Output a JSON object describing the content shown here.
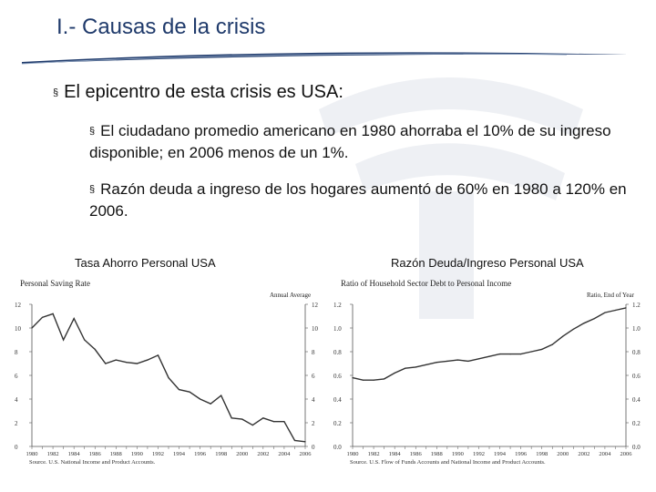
{
  "slide": {
    "title": "I.- Causas de la crisis",
    "bullet_marker": "§",
    "bullets": [
      {
        "text": "El epicentro de esta crisis es USA:"
      },
      {
        "text": "El ciudadano promedio americano en 1980 ahorraba el 10% de su ingreso disponible; en 2006 menos de un 1%."
      },
      {
        "text": "Razón deuda a ingreso de los hogares aumentó de 60% en 1980 a 120% en 2006."
      }
    ],
    "left_chart_caption": "Tasa Ahorro Personal USA",
    "right_chart_caption": "Razón Deuda/Ingreso Personal USA"
  },
  "colors": {
    "title": "#1f3a6b",
    "swoosh": "#1f3a6b",
    "line": "#333333"
  },
  "chart_data": [
    {
      "type": "line",
      "title": "Personal Saving Rate",
      "subtitle": "Annual Average",
      "source": "Source.  U.S. National Income and Product Accounts.",
      "x": [
        1980,
        1981,
        1982,
        1983,
        1984,
        1985,
        1986,
        1987,
        1988,
        1989,
        1990,
        1991,
        1992,
        1993,
        1994,
        1995,
        1996,
        1997,
        1998,
        1999,
        2000,
        2001,
        2002,
        2003,
        2004,
        2005,
        2006
      ],
      "xticks": [
        "1980",
        "1982",
        "1984",
        "1986",
        "1988",
        "1990",
        "1992",
        "1994",
        "1996",
        "1998",
        "2000",
        "2002",
        "2004",
        "2006"
      ],
      "yticks": [
        "0",
        "2",
        "4",
        "6",
        "8",
        "10",
        "12"
      ],
      "ylim": [
        0,
        12
      ],
      "series": [
        {
          "values": [
            10.0,
            10.9,
            11.2,
            9.0,
            10.8,
            9.0,
            8.2,
            7.0,
            7.3,
            7.1,
            7.0,
            7.3,
            7.7,
            5.8,
            4.8,
            4.6,
            4.0,
            3.6,
            4.3,
            2.4,
            2.3,
            1.8,
            2.4,
            2.1,
            2.1,
            0.5,
            0.4
          ]
        }
      ]
    },
    {
      "type": "line",
      "title": "Ratio of Household Sector Debt to Personal Income",
      "subtitle": "Ratio, End of Year",
      "source": "Source.  U.S. Flow of Funds Accounts and National Income and Product Accounts.",
      "x": [
        1980,
        1981,
        1982,
        1983,
        1984,
        1985,
        1986,
        1987,
        1988,
        1989,
        1990,
        1991,
        1992,
        1993,
        1994,
        1995,
        1996,
        1997,
        1998,
        1999,
        2000,
        2001,
        2002,
        2003,
        2004,
        2005,
        2006
      ],
      "xticks": [
        "1980",
        "1982",
        "1984",
        "1986",
        "1988",
        "1990",
        "1992",
        "1994",
        "1996",
        "1998",
        "2000",
        "2002",
        "2004",
        "2006"
      ],
      "yticks": [
        "0.0",
        "0.2",
        "0.4",
        "0.6",
        "0.8",
        "1.0",
        "1.2"
      ],
      "ylim": [
        0,
        1.2
      ],
      "series": [
        {
          "values": [
            0.58,
            0.56,
            0.56,
            0.57,
            0.62,
            0.66,
            0.67,
            0.69,
            0.71,
            0.72,
            0.73,
            0.72,
            0.74,
            0.76,
            0.78,
            0.78,
            0.78,
            0.8,
            0.82,
            0.86,
            0.93,
            0.99,
            1.04,
            1.08,
            1.13,
            1.15,
            1.17
          ]
        }
      ]
    }
  ]
}
